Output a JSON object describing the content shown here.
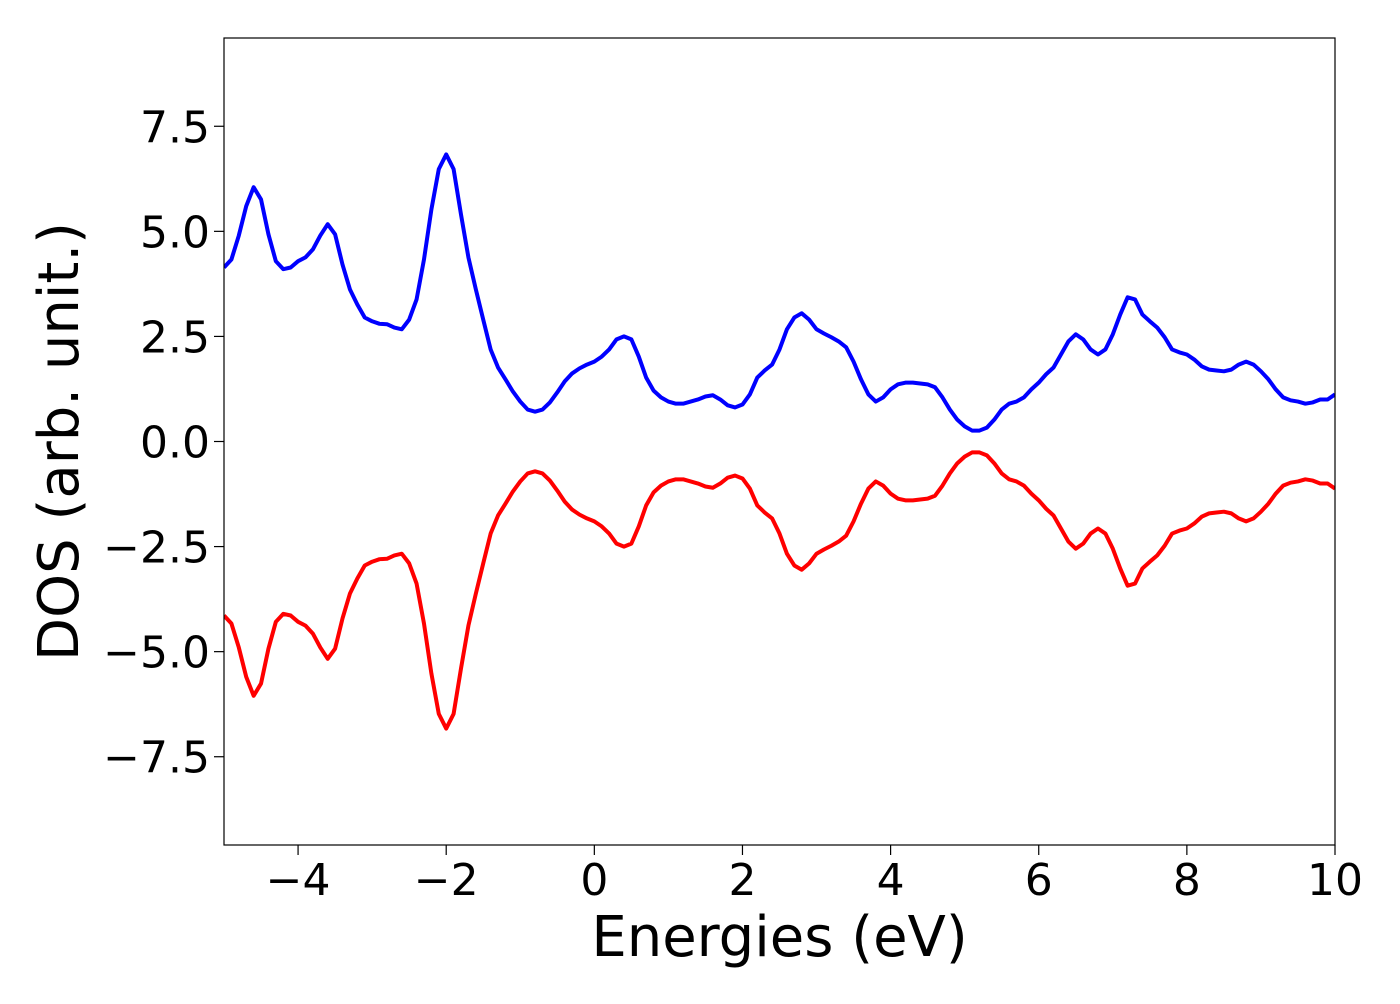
{
  "chart_data": {
    "type": "line",
    "xlabel": "Energies (eV)",
    "ylabel": "DOS (arb. unit.)",
    "x": [
      -5.0,
      -4.9,
      -4.8,
      -4.7,
      -4.6,
      -4.5,
      -4.4,
      -4.3,
      -4.2,
      -4.1,
      -4.0,
      -3.9,
      -3.8,
      -3.7,
      -3.6,
      -3.5,
      -3.4,
      -3.3,
      -3.2,
      -3.1,
      -3.0,
      -2.9,
      -2.8,
      -2.7,
      -2.6,
      -2.5,
      -2.4,
      -2.3,
      -2.2,
      -2.1,
      -2.0,
      -1.9,
      -1.8,
      -1.7,
      -1.6,
      -1.5,
      -1.4,
      -1.3,
      -1.2,
      -1.1,
      -1.0,
      -0.9,
      -0.8,
      -0.7,
      -0.6,
      -0.5,
      -0.4,
      -0.3,
      -0.2,
      -0.1,
      0.0,
      0.1,
      0.2,
      0.3,
      0.4,
      0.5,
      0.6,
      0.7,
      0.8,
      0.9,
      1.0,
      1.1,
      1.2,
      1.3,
      1.4,
      1.5,
      1.6,
      1.7,
      1.8,
      1.9,
      2.0,
      2.1,
      2.2,
      2.3,
      2.4,
      2.5,
      2.6,
      2.7,
      2.8,
      2.9,
      3.0,
      3.1,
      3.2,
      3.3,
      3.4,
      3.5,
      3.6,
      3.7,
      3.8,
      3.9,
      4.0,
      4.1,
      4.2,
      4.3,
      4.4,
      4.5,
      4.6,
      4.7,
      4.8,
      4.9,
      5.0,
      5.1,
      5.2,
      5.3,
      5.4,
      5.5,
      5.6,
      5.7,
      5.8,
      5.9,
      6.0,
      6.1,
      6.2,
      6.3,
      6.4,
      6.5,
      6.6,
      6.7,
      6.8,
      6.9,
      7.0,
      7.1,
      7.2,
      7.3,
      7.4,
      7.5,
      7.6,
      7.7,
      7.8,
      7.9,
      8.0,
      8.1,
      8.2,
      8.3,
      8.4,
      8.5,
      8.6,
      8.7,
      8.8,
      8.9,
      9.0,
      9.1,
      9.2,
      9.3,
      9.4,
      9.5,
      9.6,
      9.7,
      9.8,
      9.9,
      10.0
    ],
    "series": [
      {
        "color": "#0000ff",
        "values": [
          4.14,
          4.33,
          4.9,
          5.6,
          6.05,
          5.76,
          4.93,
          4.29,
          4.1,
          4.14,
          4.29,
          4.38,
          4.57,
          4.9,
          5.17,
          4.93,
          4.21,
          3.62,
          3.26,
          2.95,
          2.86,
          2.8,
          2.79,
          2.71,
          2.67,
          2.9,
          3.38,
          4.33,
          5.52,
          6.48,
          6.83,
          6.48,
          5.4,
          4.38,
          3.62,
          2.9,
          2.19,
          1.76,
          1.48,
          1.19,
          0.95,
          0.76,
          0.71,
          0.76,
          0.93,
          1.17,
          1.43,
          1.62,
          1.74,
          1.83,
          1.9,
          2.02,
          2.19,
          2.43,
          2.5,
          2.43,
          2.02,
          1.52,
          1.21,
          1.05,
          0.95,
          0.9,
          0.9,
          0.95,
          1.0,
          1.07,
          1.1,
          1.0,
          0.86,
          0.81,
          0.88,
          1.12,
          1.52,
          1.69,
          1.83,
          2.19,
          2.67,
          2.95,
          3.05,
          2.9,
          2.67,
          2.57,
          2.48,
          2.38,
          2.24,
          1.9,
          1.48,
          1.12,
          0.95,
          1.05,
          1.24,
          1.36,
          1.4,
          1.4,
          1.38,
          1.36,
          1.29,
          1.05,
          0.76,
          0.52,
          0.36,
          0.26,
          0.26,
          0.33,
          0.52,
          0.76,
          0.9,
          0.95,
          1.05,
          1.24,
          1.4,
          1.6,
          1.76,
          2.07,
          2.38,
          2.55,
          2.43,
          2.19,
          2.07,
          2.19,
          2.55,
          3.02,
          3.43,
          3.38,
          3.02,
          2.86,
          2.71,
          2.48,
          2.19,
          2.12,
          2.07,
          1.95,
          1.79,
          1.71,
          1.69,
          1.67,
          1.71,
          1.83,
          1.9,
          1.83,
          1.67,
          1.48,
          1.24,
          1.05,
          0.98,
          0.95,
          0.9,
          0.93,
          1.0,
          1.0,
          1.12
        ]
      },
      {
        "color": "#ff0000",
        "values": [
          -4.14,
          -4.33,
          -4.9,
          -5.6,
          -6.05,
          -5.76,
          -4.93,
          -4.29,
          -4.1,
          -4.14,
          -4.29,
          -4.38,
          -4.57,
          -4.9,
          -5.17,
          -4.93,
          -4.21,
          -3.62,
          -3.26,
          -2.95,
          -2.86,
          -2.8,
          -2.79,
          -2.71,
          -2.67,
          -2.9,
          -3.38,
          -4.33,
          -5.52,
          -6.48,
          -6.83,
          -6.48,
          -5.4,
          -4.38,
          -3.62,
          -2.9,
          -2.19,
          -1.76,
          -1.48,
          -1.19,
          -0.95,
          -0.76,
          -0.71,
          -0.76,
          -0.93,
          -1.17,
          -1.43,
          -1.62,
          -1.74,
          -1.83,
          -1.9,
          -2.02,
          -2.19,
          -2.43,
          -2.5,
          -2.43,
          -2.02,
          -1.52,
          -1.21,
          -1.05,
          -0.95,
          -0.9,
          -0.9,
          -0.95,
          -1.0,
          -1.07,
          -1.1,
          -1.0,
          -0.86,
          -0.81,
          -0.88,
          -1.12,
          -1.52,
          -1.69,
          -1.83,
          -2.19,
          -2.67,
          -2.95,
          -3.05,
          -2.9,
          -2.67,
          -2.57,
          -2.48,
          -2.38,
          -2.24,
          -1.9,
          -1.48,
          -1.12,
          -0.95,
          -1.05,
          -1.24,
          -1.36,
          -1.4,
          -1.4,
          -1.38,
          -1.36,
          -1.29,
          -1.05,
          -0.76,
          -0.52,
          -0.36,
          -0.26,
          -0.26,
          -0.33,
          -0.52,
          -0.76,
          -0.9,
          -0.95,
          -1.05,
          -1.24,
          -1.4,
          -1.6,
          -1.76,
          -2.07,
          -2.38,
          -2.55,
          -2.43,
          -2.19,
          -2.07,
          -2.19,
          -2.55,
          -3.02,
          -3.43,
          -3.38,
          -3.02,
          -2.86,
          -2.71,
          -2.48,
          -2.19,
          -2.12,
          -2.07,
          -1.95,
          -1.79,
          -1.71,
          -1.69,
          -1.67,
          -1.71,
          -1.83,
          -1.9,
          -1.83,
          -1.67,
          -1.48,
          -1.24,
          -1.05,
          -0.98,
          -0.95,
          -0.9,
          -0.93,
          -1.0,
          -1.0,
          -1.12
        ]
      }
    ],
    "xlim": [
      -5,
      10
    ],
    "xticks": [
      {
        "value": -4,
        "label": "−4"
      },
      {
        "value": -2,
        "label": "−2"
      },
      0,
      2,
      4,
      6,
      8,
      10
    ],
    "ylim": [
      -9.6,
      9.6
    ],
    "yticks": [
      {
        "value": -7.5,
        "label": "−7.5"
      },
      {
        "value": -5,
        "label": "−5.0"
      },
      {
        "value": -2.5,
        "label": "−2.5"
      },
      {
        "value": 0,
        "label": "0.0"
      },
      2.5,
      {
        "value": 5,
        "label": "5.0"
      },
      7.5
    ],
    "grid": false
  }
}
